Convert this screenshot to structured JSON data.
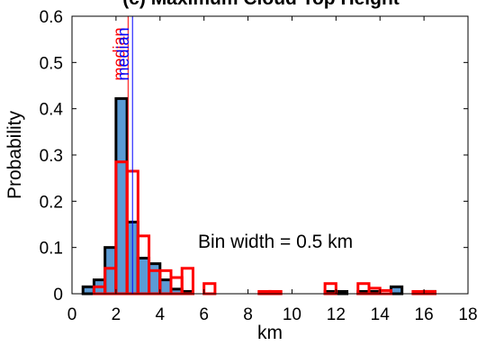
{
  "chart_data": {
    "type": "bar",
    "title": "(c) Maximum Cloud Top Height",
    "xlabel": "km",
    "ylabel": "Probability",
    "xlim": [
      0,
      18
    ],
    "ylim": [
      0,
      0.6
    ],
    "x_ticks": [
      "0",
      "2",
      "4",
      "6",
      "8",
      "10",
      "12",
      "14",
      "16",
      "18"
    ],
    "y_ticks": [
      "0",
      "0.1",
      "0.2",
      "0.3",
      "0.4",
      "0.5",
      "0.6"
    ],
    "bin_width": 0.5,
    "annotation": "Bin width = 0.5 km",
    "colors": {
      "filled_bars": "#5b9bd5",
      "filled_edge": "#000000",
      "outline_bars": "#ff0000",
      "blue_median": "#0000ff",
      "red_median": "#ff0000"
    },
    "series": [
      {
        "style": "filled",
        "bin_starts": [
          0.5,
          1.0,
          1.5,
          2.0,
          2.5,
          3.0,
          3.5,
          4.0,
          4.5,
          5.0,
          11.5,
          12.0,
          13.0,
          13.5,
          14.5,
          16.0
        ],
        "values": [
          0.015,
          0.03,
          0.1,
          0.422,
          0.155,
          0.077,
          0.065,
          0.03,
          0.01,
          0.005,
          0.005,
          0.005,
          0.005,
          0.005,
          0.015,
          0.005
        ]
      },
      {
        "style": "outline",
        "bin_starts": [
          1.0,
          1.5,
          2.0,
          2.5,
          3.0,
          3.5,
          4.0,
          4.5,
          5.0,
          6.0,
          8.5,
          9.0,
          11.5,
          13.0,
          13.5,
          14.0,
          15.5,
          16.0
        ],
        "values": [
          0.015,
          0.055,
          0.285,
          0.265,
          0.125,
          0.05,
          0.05,
          0.035,
          0.055,
          0.022,
          0.005,
          0.005,
          0.022,
          0.022,
          0.012,
          0.007,
          0.005,
          0.005
        ]
      }
    ],
    "medians": [
      {
        "value": 2.55,
        "label": "median",
        "color": "#ff0000"
      },
      {
        "value": 2.75,
        "label": "median",
        "color": "#0000ff"
      }
    ]
  }
}
